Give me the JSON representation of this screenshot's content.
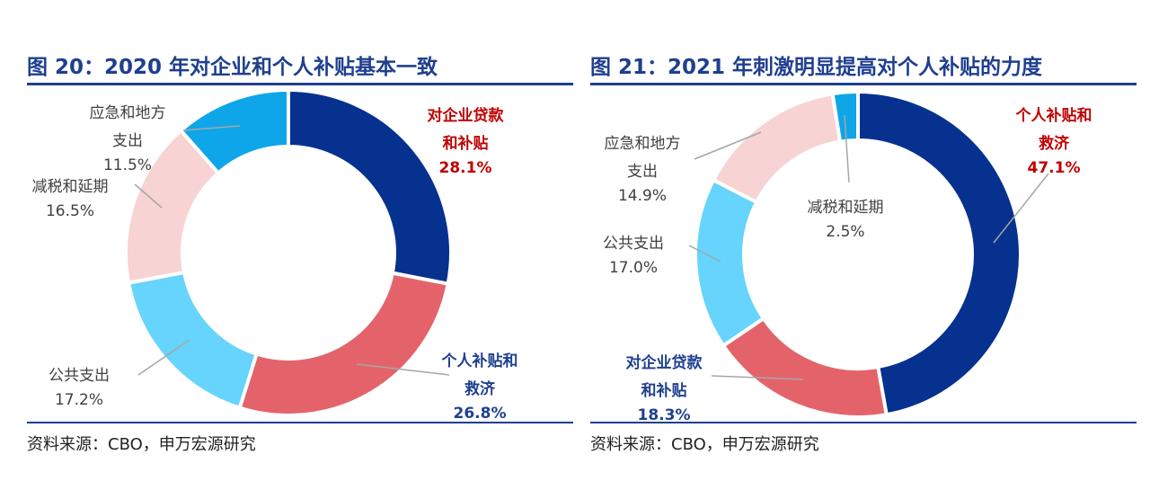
{
  "charts": [
    {
      "title": "图 20：2020 年对企业和个人补贴基本一致",
      "source": "资料来源：CBO，申万宏源研究",
      "chart_data": {
        "type": "pie",
        "donut": true,
        "title": "图 20：2020 年对企业和个人补贴基本一致",
        "start": "12 o'clock",
        "direction": "clockwise",
        "slices": [
          {
            "label": "对企业贷款和补贴",
            "label_lines": [
              "对企业贷款",
              "和补贴"
            ],
            "value": 28.1,
            "value_label": "28.1%",
            "color": "#06318f",
            "label_color": "#c00000",
            "label_bold": true
          },
          {
            "label": "个人补贴和救济",
            "label_lines": [
              "个人补贴和",
              "救济"
            ],
            "value": 26.8,
            "value_label": "26.8%",
            "color": "#e4636a",
            "label_color": "#1f3f8f",
            "label_bold": true
          },
          {
            "label": "公共支出",
            "label_lines": [
              "公共支出"
            ],
            "value": 17.2,
            "value_label": "17.2%",
            "color": "#66d4fc",
            "label_color": "#404040",
            "label_bold": false
          },
          {
            "label": "减税和延期",
            "label_lines": [
              "减税和延期"
            ],
            "value": 16.5,
            "value_label": "16.5%",
            "color": "#f8d3d4",
            "label_color": "#404040",
            "label_bold": false
          },
          {
            "label": "应急和地方支出",
            "label_lines": [
              "应急和地方",
              "支出"
            ],
            "value": 11.5,
            "value_label": "11.5%",
            "color": "#0ea6e8",
            "label_color": "#404040",
            "label_bold": false
          }
        ]
      }
    },
    {
      "title": "图 21：2021 年刺激明显提高对个人补贴的力度",
      "source": "资料来源：CBO，申万宏源研究",
      "chart_data": {
        "type": "pie",
        "donut": true,
        "title": "图 21：2021 年刺激明显提高对个人补贴的力度",
        "start": "12 o'clock",
        "direction": "clockwise",
        "slices": [
          {
            "label": "个人补贴和救济",
            "label_lines": [
              "个人补贴和",
              "救济"
            ],
            "value": 47.1,
            "value_label": "47.1%",
            "color": "#06318f",
            "label_color": "#c00000",
            "label_bold": true
          },
          {
            "label": "对企业贷款和补贴",
            "label_lines": [
              "对企业贷款",
              "和补贴"
            ],
            "value": 18.3,
            "value_label": "18.3%",
            "color": "#e4636a",
            "label_color": "#1f3f8f",
            "label_bold": true
          },
          {
            "label": "公共支出",
            "label_lines": [
              "公共支出"
            ],
            "value": 17.0,
            "value_label": "17.0%",
            "color": "#66d4fc",
            "label_color": "#404040",
            "label_bold": false
          },
          {
            "label": "应急和地方支出",
            "label_lines": [
              "应急和地方",
              "支出"
            ],
            "value": 14.9,
            "value_label": "14.9%",
            "color": "#f8d3d4",
            "label_color": "#404040",
            "label_bold": false
          },
          {
            "label": "减税和延期",
            "label_lines": [
              "减税和延期"
            ],
            "value": 2.5,
            "value_label": "2.5%",
            "color": "#0ea6e8",
            "label_color": "#404040",
            "label_bold": false
          }
        ]
      }
    }
  ]
}
